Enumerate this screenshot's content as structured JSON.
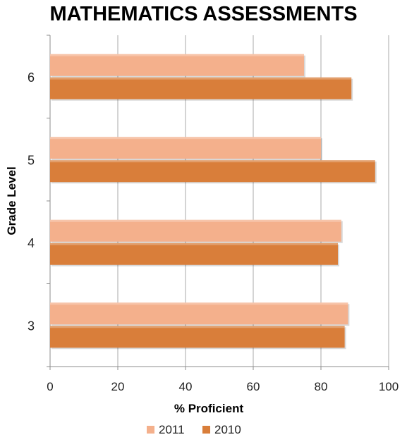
{
  "chart_data": {
    "type": "bar",
    "orientation": "horizontal",
    "title": "MATHEMATICS ASSESSMENTS",
    "xlabel": "% Proficient",
    "ylabel": "Grade Level",
    "categories": [
      "3",
      "4",
      "5",
      "6"
    ],
    "series": [
      {
        "name": "2011",
        "color": "#F4B08C",
        "values": [
          88,
          86,
          80,
          75
        ]
      },
      {
        "name": "2010",
        "color": "#D97E3A",
        "values": [
          87,
          85,
          96,
          89
        ]
      }
    ],
    "xlim": [
      0,
      100
    ],
    "xticks": [
      "0",
      "20",
      "40",
      "60",
      "80",
      "100"
    ],
    "grid": true,
    "legend_position": "bottom"
  }
}
